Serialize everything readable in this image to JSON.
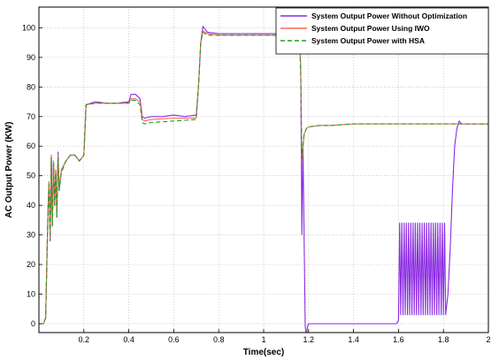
{
  "chart_data": {
    "type": "line",
    "title": "",
    "xlabel": "Time(sec)",
    "ylabel": "AC Output Power (KW)",
    "xlim": [
      0,
      2
    ],
    "ylim": [
      -3,
      107
    ],
    "xticks": [
      0.2,
      0.4,
      0.6,
      0.8,
      1,
      1.2,
      1.4,
      1.6,
      1.8,
      2
    ],
    "xtick_labels": [
      "0.2",
      "0.4",
      "0.6",
      "0.8",
      "1",
      "1.2",
      "1.4",
      "1.6",
      "1.8",
      "2"
    ],
    "yticks": [
      0,
      10,
      20,
      30,
      40,
      50,
      60,
      70,
      80,
      90,
      100
    ],
    "yticks_labels": [
      "0",
      "10",
      "20",
      "30",
      "40",
      "50",
      "60",
      "70",
      "80",
      "90",
      "100"
    ],
    "grid": true,
    "legend_position": "top-right",
    "series": [
      {
        "name": "System Output Power Without Optimization",
        "color": "#8a2be2",
        "dash": "",
        "x": [
          0,
          0.02,
          0.03,
          0.04,
          0.045,
          0.05,
          0.055,
          0.06,
          0.065,
          0.07,
          0.075,
          0.08,
          0.085,
          0.09,
          0.1,
          0.12,
          0.14,
          0.16,
          0.18,
          0.2,
          0.21,
          0.25,
          0.3,
          0.35,
          0.4,
          0.41,
          0.43,
          0.45,
          0.46,
          0.47,
          0.5,
          0.55,
          0.6,
          0.65,
          0.7,
          0.71,
          0.72,
          0.73,
          0.75,
          0.8,
          0.9,
          1,
          1.1,
          1.16,
          1.165,
          1.17,
          1.175,
          1.18,
          1.185,
          1.19,
          1.195,
          1.2,
          1.21,
          1.22,
          1.25,
          1.3,
          1.4,
          1.5,
          1.59,
          1.6,
          1.605,
          1.61,
          1.615,
          1.62,
          1.625,
          1.63,
          1.635,
          1.64,
          1.645,
          1.65,
          1.655,
          1.66,
          1.665,
          1.67,
          1.675,
          1.68,
          1.685,
          1.69,
          1.695,
          1.7,
          1.705,
          1.71,
          1.715,
          1.72,
          1.725,
          1.73,
          1.735,
          1.74,
          1.745,
          1.75,
          1.755,
          1.76,
          1.765,
          1.77,
          1.775,
          1.78,
          1.785,
          1.79,
          1.795,
          1.8,
          1.805,
          1.81,
          1.82,
          1.83,
          1.84,
          1.85,
          1.86,
          1.87,
          1.88,
          1.9,
          1.95,
          2
        ],
        "values": [
          0,
          0,
          2,
          38,
          48,
          28,
          57,
          33,
          55,
          40,
          52,
          36,
          58,
          45,
          52,
          55,
          57,
          57,
          55,
          57,
          74,
          75,
          74.5,
          74.5,
          75,
          77.5,
          77.5,
          76,
          70,
          69.5,
          70,
          70,
          70.5,
          70,
          70.5,
          80,
          95,
          100.5,
          98.5,
          98,
          98,
          98,
          98,
          98,
          85,
          30,
          60,
          30,
          -1,
          -4,
          -1,
          0,
          0,
          0,
          0,
          0,
          0,
          0,
          0,
          1,
          34,
          3,
          34,
          3,
          34,
          3,
          34,
          3,
          34,
          3,
          34,
          3,
          34,
          3,
          34,
          3,
          34,
          3,
          34,
          3,
          34,
          3,
          34,
          3,
          34,
          3,
          34,
          3,
          34,
          3,
          34,
          3,
          34,
          3,
          34,
          3,
          34,
          3,
          34,
          3,
          34,
          3,
          10,
          25,
          45,
          60,
          66,
          68.5,
          67.5,
          67.5,
          67.5,
          67.5
        ]
      },
      {
        "name": "System Output Power Using IWO",
        "color": "#ff6655",
        "dash": "",
        "x": [
          0,
          0.02,
          0.03,
          0.04,
          0.045,
          0.05,
          0.055,
          0.06,
          0.065,
          0.07,
          0.075,
          0.08,
          0.085,
          0.09,
          0.1,
          0.12,
          0.14,
          0.16,
          0.18,
          0.2,
          0.21,
          0.25,
          0.3,
          0.35,
          0.4,
          0.41,
          0.43,
          0.45,
          0.46,
          0.47,
          0.5,
          0.6,
          0.7,
          0.71,
          0.72,
          0.73,
          0.75,
          0.8,
          0.9,
          1,
          1.1,
          1.16,
          1.165,
          1.17,
          1.18,
          1.19,
          1.2,
          1.25,
          1.3,
          1.4,
          1.5,
          1.6,
          1.7,
          1.8,
          1.9,
          2
        ],
        "values": [
          0,
          0,
          2,
          38,
          48,
          29,
          57,
          34,
          55,
          41,
          52,
          37,
          57,
          46,
          52,
          55,
          57,
          57,
          55,
          57,
          74,
          74.5,
          74.5,
          74.5,
          74.5,
          76,
          76,
          75,
          69,
          68.5,
          69,
          69.5,
          69.5,
          80,
          95,
          99,
          98,
          97.5,
          97.5,
          97.5,
          97.5,
          97.5,
          85,
          55,
          64,
          66,
          66.5,
          67,
          67,
          67.5,
          67.5,
          67.5,
          67.5,
          67.5,
          67.5,
          67.5
        ]
      },
      {
        "name": "System Output Power with HSA",
        "color": "#1f9e1f",
        "dash": "5,3",
        "x": [
          0,
          0.02,
          0.03,
          0.04,
          0.045,
          0.05,
          0.055,
          0.06,
          0.065,
          0.07,
          0.075,
          0.08,
          0.085,
          0.09,
          0.1,
          0.12,
          0.14,
          0.16,
          0.18,
          0.2,
          0.21,
          0.25,
          0.3,
          0.35,
          0.4,
          0.41,
          0.43,
          0.45,
          0.46,
          0.47,
          0.5,
          0.6,
          0.7,
          0.71,
          0.72,
          0.73,
          0.75,
          0.8,
          0.9,
          1,
          1.1,
          1.16,
          1.165,
          1.17,
          1.18,
          1.19,
          1.2,
          1.25,
          1.3,
          1.4,
          1.5,
          1.6,
          1.7,
          1.8,
          1.9,
          2
        ],
        "values": [
          0,
          0,
          2,
          37,
          47,
          28,
          56,
          33,
          54,
          40,
          51,
          36,
          56,
          45,
          51,
          55,
          57,
          57,
          55,
          57,
          74,
          74.5,
          74.5,
          74.5,
          74.5,
          75.5,
          75.5,
          74,
          68,
          67.5,
          68,
          68.5,
          69,
          80,
          95,
          98.5,
          97.5,
          97.5,
          97.5,
          97.5,
          97.5,
          97.5,
          85,
          56,
          64,
          66,
          66.5,
          67,
          67,
          67.5,
          67.5,
          67.5,
          67.5,
          67.5,
          67.5,
          67.5
        ]
      }
    ]
  }
}
